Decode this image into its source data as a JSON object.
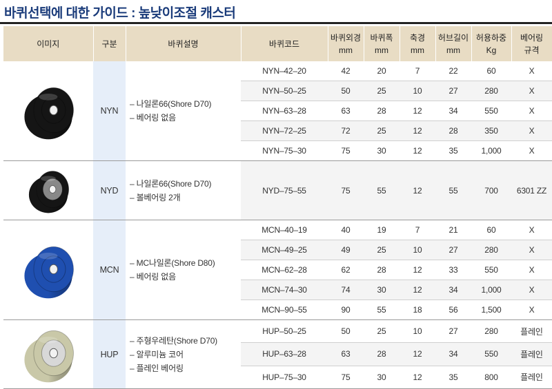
{
  "title": "바퀴선택에 대한 가이드 : 높낮이조절 캐스터",
  "header": {
    "image": "이미지",
    "category": "구분",
    "description": "바퀴설명",
    "code": "바퀴코드",
    "diameter": [
      "바퀴외경",
      "mm"
    ],
    "width": [
      "바퀴폭",
      "mm"
    ],
    "axle": [
      "축경",
      "mm"
    ],
    "hub": [
      "허브길이",
      "mm"
    ],
    "load": [
      "허용하중",
      "Kg"
    ],
    "bearing": [
      "베어링",
      "규격"
    ]
  },
  "groups": [
    {
      "category": "NYN",
      "wheel_color": "#151515",
      "desc": [
        "– 나일론66(Shore D70)",
        "– 베어링 없음"
      ],
      "rows": [
        {
          "code": "NYN–42–20",
          "d": "42",
          "w": "20",
          "a": "7",
          "h": "22",
          "load": "60",
          "bearing": "X"
        },
        {
          "code": "NYN–50–25",
          "d": "50",
          "w": "25",
          "a": "10",
          "h": "27",
          "load": "280",
          "bearing": "X"
        },
        {
          "code": "NYN–63–28",
          "d": "63",
          "w": "28",
          "a": "12",
          "h": "34",
          "load": "550",
          "bearing": "X"
        },
        {
          "code": "NYN–72–25",
          "d": "72",
          "w": "25",
          "a": "12",
          "h": "28",
          "load": "350",
          "bearing": "X"
        },
        {
          "code": "NYN–75–30",
          "d": "75",
          "w": "30",
          "a": "12",
          "h": "35",
          "load": "1,000",
          "bearing": "X"
        }
      ]
    },
    {
      "category": "NYD",
      "wheel_color": "#151515",
      "desc": [
        "– 나일론66(Shore D70)",
        "– 볼베어링 2개"
      ],
      "rows": [
        {
          "code": "NYD–75–55",
          "d": "75",
          "w": "55",
          "a": "12",
          "h": "55",
          "load": "700",
          "bearing": "6301 ZZ"
        }
      ]
    },
    {
      "category": "MCN",
      "wheel_color": "#1f4fb0",
      "desc": [
        "– MC나일론(Shore D80)",
        "– 베어링 없음"
      ],
      "rows": [
        {
          "code": "MCN–40–19",
          "d": "40",
          "w": "19",
          "a": "7",
          "h": "21",
          "load": "60",
          "bearing": "X"
        },
        {
          "code": "MCN–49–25",
          "d": "49",
          "w": "25",
          "a": "10",
          "h": "27",
          "load": "280",
          "bearing": "X"
        },
        {
          "code": "MCN–62–28",
          "d": "62",
          "w": "28",
          "a": "12",
          "h": "33",
          "load": "550",
          "bearing": "X"
        },
        {
          "code": "MCN–74–30",
          "d": "74",
          "w": "30",
          "a": "12",
          "h": "34",
          "load": "1,000",
          "bearing": "X"
        },
        {
          "code": "MCN–90–55",
          "d": "90",
          "w": "55",
          "a": "18",
          "h": "56",
          "load": "1,500",
          "bearing": "X"
        }
      ]
    },
    {
      "category": "HUP",
      "wheel_color": "#c9c8a8",
      "desc": [
        "– 주형우레탄(Shore D70)",
        "– 알루미늄 코어",
        "– 플레인 베어링"
      ],
      "rows": [
        {
          "code": "HUP–50–25",
          "d": "50",
          "w": "25",
          "a": "10",
          "h": "27",
          "load": "280",
          "bearing": "플레인"
        },
        {
          "code": "HUP–63–28",
          "d": "63",
          "w": "28",
          "a": "12",
          "h": "34",
          "load": "550",
          "bearing": "플레인"
        },
        {
          "code": "HUP–75–30",
          "d": "75",
          "w": "30",
          "a": "12",
          "h": "35",
          "load": "800",
          "bearing": "플레인"
        }
      ]
    }
  ]
}
